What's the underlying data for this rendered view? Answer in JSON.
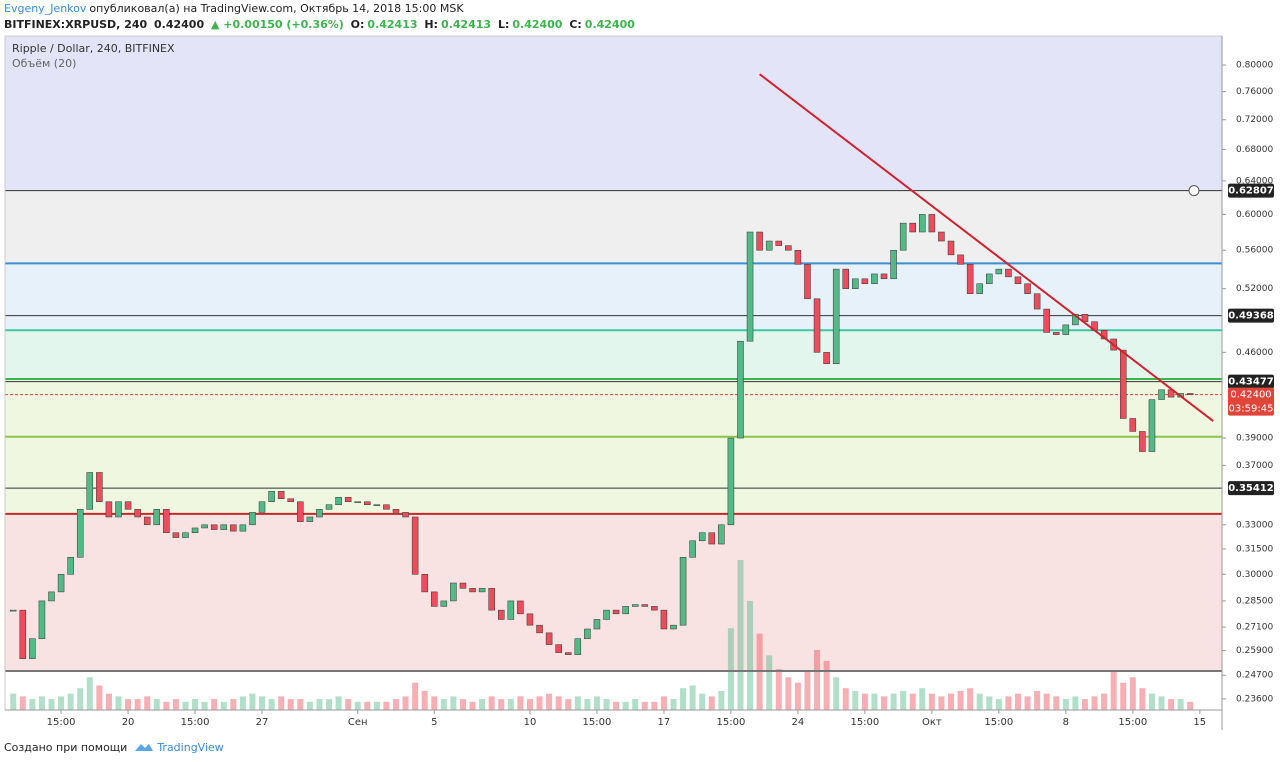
{
  "header": {
    "author": "Evgeny_Jenkov",
    "published": "опубликовал(а) на TradingView.com, Октябрь 14, 2018 15:00 MSK",
    "symbol": "BITFINEX:XRPUSD, 240",
    "last": "0.42400",
    "change": "▲ +0.00150 (+0.36%)",
    "ohlc": [
      {
        "key": "O:",
        "value": "0.42413"
      },
      {
        "key": "H:",
        "value": "0.42413"
      },
      {
        "key": "L:",
        "value": "0.42400"
      },
      {
        "key": "C:",
        "value": "0.42400"
      }
    ]
  },
  "chart_data": {
    "type": "candlestick",
    "title": "Ripple / Dollar, 240, BITFINEX",
    "subtitle": "Объём (20)",
    "log_scale": true,
    "up_color": "#53b987",
    "down_color": "#eb4d5c",
    "x": [
      14,
      14.5,
      15,
      15.5,
      16,
      16.5,
      17,
      17.5,
      18,
      18.5,
      19,
      19.5,
      20,
      20.5,
      21,
      21.5,
      22,
      22.5,
      23,
      23.5,
      24,
      24.5,
      25,
      25.5,
      26,
      26.5,
      27,
      27.5,
      28,
      28.5,
      29,
      29.5,
      30,
      30.5,
      31,
      31.5,
      32,
      32.5,
      33,
      33.5,
      34,
      34.5,
      35,
      35.5,
      36,
      36.5,
      37,
      37.5,
      38,
      38.5,
      39,
      39.5,
      40,
      40.5,
      41,
      41.5,
      42,
      42.5,
      43,
      43.5,
      44,
      44.5,
      45,
      45.5,
      46,
      46.5,
      47,
      47.5,
      48,
      48.5,
      49,
      49.5,
      50,
      50.5,
      51,
      51.5,
      52,
      52.5,
      53,
      53.5,
      54,
      54.5,
      55,
      55.5,
      56,
      56.5,
      57,
      57.5,
      58,
      58.5,
      59,
      59.5,
      60,
      60.5,
      61,
      61.5,
      62,
      62.5,
      63,
      63.5,
      64,
      64.5,
      65,
      65.5,
      66,
      66.5,
      67,
      67.5,
      68,
      68.5,
      69,
      69.5,
      70,
      70.5,
      71,
      71.5,
      72,
      72.5,
      73,
      73.5,
      74,
      74.5,
      75,
      75.5
    ],
    "values": [
      0.28,
      0.255,
      0.265,
      0.285,
      0.29,
      0.3,
      0.31,
      0.34,
      0.365,
      0.345,
      0.335,
      0.345,
      0.34,
      0.335,
      0.33,
      0.34,
      0.325,
      0.322,
      0.325,
      0.328,
      0.33,
      0.327,
      0.33,
      0.326,
      0.33,
      0.338,
      0.345,
      0.352,
      0.347,
      0.345,
      0.332,
      0.335,
      0.34,
      0.343,
      0.348,
      0.345,
      0.345,
      0.343,
      0.343,
      0.34,
      0.338,
      0.335,
      0.3,
      0.29,
      0.282,
      0.285,
      0.295,
      0.292,
      0.29,
      0.292,
      0.28,
      0.275,
      0.285,
      0.278,
      0.272,
      0.268,
      0.262,
      0.258,
      0.257,
      0.265,
      0.27,
      0.275,
      0.28,
      0.278,
      0.282,
      0.283,
      0.282,
      0.28,
      0.27,
      0.272,
      0.31,
      0.32,
      0.325,
      0.318,
      0.33,
      0.39,
      0.47,
      0.58,
      0.56,
      0.57,
      0.565,
      0.56,
      0.545,
      0.51,
      0.46,
      0.45,
      0.54,
      0.52,
      0.53,
      0.525,
      0.535,
      0.53,
      0.56,
      0.59,
      0.58,
      0.6,
      0.58,
      0.57,
      0.555,
      0.545,
      0.515,
      0.525,
      0.535,
      0.54,
      0.532,
      0.525,
      0.515,
      0.5,
      0.478,
      0.476,
      0.485,
      0.495,
      0.488,
      0.48,
      0.472,
      0.462,
      0.405,
      0.395,
      0.38,
      0.42,
      0.428,
      0.422,
      0.425,
      0.424
    ],
    "volume": [
      6,
      5,
      4,
      5,
      4,
      5,
      6,
      8,
      12,
      9,
      6,
      5,
      4,
      4,
      5,
      4,
      3,
      4,
      3,
      4,
      3,
      4,
      3,
      4,
      5,
      6,
      5,
      4,
      5,
      4,
      4,
      3,
      4,
      4,
      5,
      4,
      3,
      3,
      3,
      3,
      4,
      5,
      10,
      7,
      5,
      4,
      5,
      4,
      3,
      4,
      5,
      4,
      4,
      5,
      4,
      5,
      6,
      5,
      4,
      5,
      4,
      5,
      4,
      3,
      3,
      4,
      3,
      3,
      5,
      4,
      8,
      9,
      6,
      5,
      7,
      30,
      55,
      40,
      28,
      20,
      15,
      12,
      10,
      14,
      22,
      18,
      12,
      8,
      7,
      6,
      6,
      5,
      6,
      7,
      6,
      8,
      6,
      5,
      6,
      7,
      8,
      6,
      5,
      4,
      5,
      6,
      5,
      7,
      6,
      5,
      4,
      5,
      4,
      5,
      6,
      14,
      10,
      12,
      8,
      6,
      5,
      4,
      4,
      3
    ],
    "xlim": [
      13.57,
      77.16
    ],
    "ylim": [
      0.231,
      0.846
    ],
    "xticks": [
      {
        "value": 16.5,
        "label": "15:00"
      },
      20,
      {
        "value": 23.5,
        "label": "15:00"
      },
      27,
      {
        "value": 32,
        "label": "Сен"
      },
      {
        "value": 36,
        "label": "5"
      },
      {
        "value": 41,
        "label": "10"
      },
      {
        "value": 44.5,
        "label": "15:00"
      },
      {
        "value": 48,
        "label": "17"
      },
      {
        "value": 51.5,
        "label": "15:00"
      },
      {
        "value": 55,
        "label": "24"
      },
      {
        "value": 58.5,
        "label": "15:00"
      },
      {
        "value": 62,
        "label": "Окт"
      },
      {
        "value": 65.5,
        "label": "15:00"
      },
      {
        "value": 69,
        "label": "8"
      },
      {
        "value": 72.5,
        "label": "15:00"
      },
      {
        "value": 76,
        "label": "15"
      }
    ],
    "yticks": [
      {
        "value": 0.8,
        "label": "0.80000"
      },
      {
        "value": 0.76,
        "label": "0.76000"
      },
      {
        "value": 0.72,
        "label": "0.72000"
      },
      {
        "value": 0.68,
        "label": "0.68000"
      },
      {
        "value": 0.64,
        "label": "0.64000"
      },
      {
        "value": 0.6,
        "label": "0.60000"
      },
      {
        "value": 0.56,
        "label": "0.56000"
      },
      {
        "value": 0.52,
        "label": "0.52000"
      },
      {
        "value": 0.46,
        "label": "0.46000"
      },
      {
        "value": 0.39,
        "label": "0.39000"
      },
      {
        "value": 0.37,
        "label": "0.37000"
      },
      {
        "value": 0.33,
        "label": "0.33000"
      },
      {
        "value": 0.315,
        "label": "0.31500"
      },
      {
        "value": 0.3,
        "label": "0.30000"
      },
      {
        "value": 0.285,
        "label": "0.28500"
      },
      {
        "value": 0.271,
        "label": "0.27100"
      },
      {
        "value": 0.259,
        "label": "0.25900"
      },
      {
        "value": 0.247,
        "label": "0.24700"
      },
      {
        "value": 0.236,
        "label": "0.23600"
      }
    ],
    "zones": [
      {
        "from": 0.846,
        "to": 0.62807,
        "color": "#e4e4f8"
      },
      {
        "from": 0.62807,
        "to": 0.546,
        "color": "#efefef"
      },
      {
        "from": 0.546,
        "to": 0.48,
        "color": "#e6f1fa"
      },
      {
        "from": 0.48,
        "to": 0.437,
        "color": "#e2f6ee"
      },
      {
        "from": 0.437,
        "to": 0.337,
        "color": "#eff7e1"
      },
      {
        "from": 0.337,
        "to": 0.249,
        "color": "#f8e2e2"
      }
    ],
    "levels": [
      {
        "value": 0.62807,
        "color": "#333333",
        "labeled": true
      },
      {
        "value": 0.546,
        "color": "#3d8fd1",
        "labeled": false
      },
      {
        "value": 0.49368,
        "color": "#333333",
        "labeled": true
      },
      {
        "value": 0.48,
        "color": "#3cc8a0",
        "labeled": false
      },
      {
        "value": 0.437,
        "color": "#3fb34f",
        "labeled": false
      },
      {
        "value": 0.43477,
        "color": "#333333",
        "labeled": true
      },
      {
        "value": 0.391,
        "color": "#8bc34a",
        "labeled": false
      },
      {
        "value": 0.35412,
        "color": "#333333",
        "labeled": true
      },
      {
        "value": 0.337,
        "color": "#c62828",
        "labeled": false
      },
      {
        "value": 0.249,
        "color": "#777777",
        "labeled": false
      }
    ],
    "trend_line": {
      "x": [
        53,
        76.7
      ],
      "y": [
        0.786,
        0.403
      ],
      "color": "#d0212f"
    },
    "last_price": {
      "value": 0.424,
      "label": "0.42400",
      "color": "#e0453a"
    },
    "countdown": "03:59:45"
  },
  "footer": {
    "made_with": "Создано при помощи",
    "brand": "TradingView"
  }
}
